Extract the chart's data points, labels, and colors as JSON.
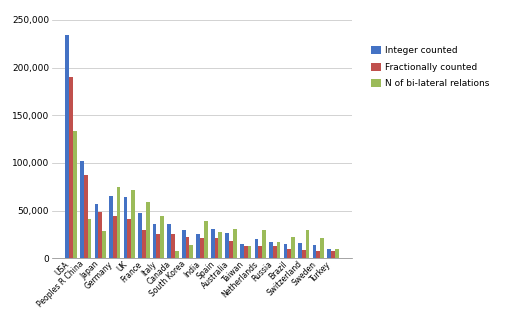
{
  "categories": [
    "USA",
    "Peoples R China",
    "Japan",
    "Germany",
    "UK",
    "France",
    "Italy",
    "Canada",
    "South Korea",
    "India",
    "Spain",
    "Australia",
    "Taiwan",
    "Netherlands",
    "Russia",
    "Brazil",
    "Switzerland",
    "Sweden",
    "Turkey"
  ],
  "integer_counted": [
    234000,
    102000,
    57000,
    65000,
    64000,
    47000,
    36000,
    36000,
    30000,
    25000,
    31000,
    26000,
    15000,
    20000,
    17000,
    15000,
    16000,
    14000,
    10000
  ],
  "fractionally_counted": [
    190000,
    87000,
    48000,
    44000,
    41000,
    30000,
    25000,
    25000,
    22000,
    21000,
    21000,
    18000,
    13000,
    13000,
    13000,
    10000,
    9000,
    8000,
    8000
  ],
  "bilateral_relations": [
    133000,
    41000,
    29000,
    75000,
    72000,
    59000,
    44000,
    8000,
    14000,
    39000,
    27000,
    31000,
    13000,
    30000,
    17000,
    22000,
    30000,
    21000,
    10000
  ],
  "bar_colors": [
    "#4472c4",
    "#c0504d",
    "#9bbb59"
  ],
  "legend_labels": [
    "Integer counted",
    "Fractionally counted",
    "N of bi-lateral relations"
  ],
  "ylim": [
    0,
    250000
  ],
  "yticks": [
    0,
    50000,
    100000,
    150000,
    200000,
    250000
  ],
  "ytick_labels": [
    "0",
    "50,000",
    "100,000",
    "150,000",
    "200,000",
    "250,000"
  ],
  "background_color": "#ffffff",
  "figsize": [
    5.18,
    3.31
  ],
  "dpi": 100
}
